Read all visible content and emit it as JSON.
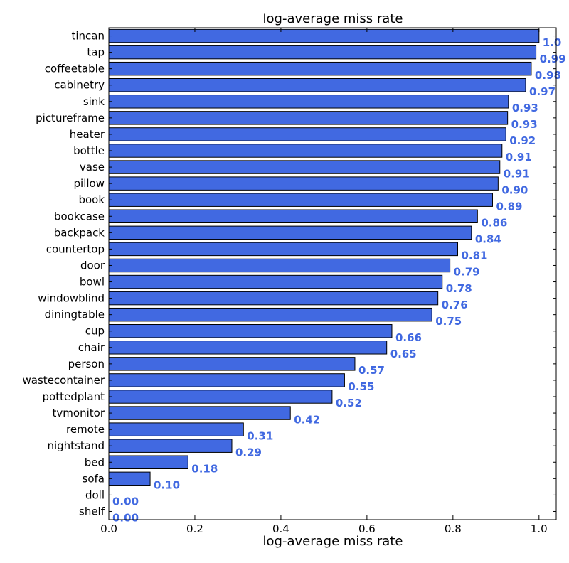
{
  "chart_data": {
    "type": "bar",
    "orientation": "horizontal",
    "title": "log-average miss rate",
    "xlabel": "log-average miss rate",
    "ylabel": "",
    "xlim": [
      0.0,
      1.04
    ],
    "xticks": [
      0.0,
      0.2,
      0.4,
      0.6,
      0.8,
      1.0
    ],
    "xtick_labels": [
      "0.0",
      "0.2",
      "0.4",
      "0.6",
      "0.8",
      "1.0"
    ],
    "grid": false,
    "categories": [
      "tincan",
      "tap",
      "coffeetable",
      "cabinetry",
      "sink",
      "pictureframe",
      "heater",
      "bottle",
      "vase",
      "pillow",
      "book",
      "bookcase",
      "backpack",
      "countertop",
      "door",
      "bowl",
      "windowblind",
      "diningtable",
      "cup",
      "chair",
      "person",
      "wastecontainer",
      "pottedplant",
      "tvmonitor",
      "remote",
      "nightstand",
      "bed",
      "sofa",
      "doll",
      "shelf"
    ],
    "values": [
      1.0,
      0.993,
      0.982,
      0.969,
      0.929,
      0.927,
      0.923,
      0.914,
      0.909,
      0.905,
      0.892,
      0.857,
      0.843,
      0.811,
      0.793,
      0.775,
      0.765,
      0.751,
      0.658,
      0.646,
      0.572,
      0.548,
      0.519,
      0.422,
      0.313,
      0.286,
      0.184,
      0.096,
      0.0,
      0.0
    ],
    "value_labels": [
      "1.0",
      "0.99",
      "0.98",
      "0.97",
      "0.93",
      "0.93",
      "0.92",
      "0.91",
      "0.91",
      "0.90",
      "0.89",
      "0.86",
      "0.84",
      "0.81",
      "0.79",
      "0.78",
      "0.76",
      "0.75",
      "0.66",
      "0.65",
      "0.57",
      "0.55",
      "0.52",
      "0.42",
      "0.31",
      "0.29",
      "0.18",
      "0.10",
      "0.00",
      "0.00"
    ],
    "colors": {
      "bar": "#4169e1",
      "bar_edge": "#000000",
      "label": "#4169e1",
      "axis": "#000000"
    }
  }
}
